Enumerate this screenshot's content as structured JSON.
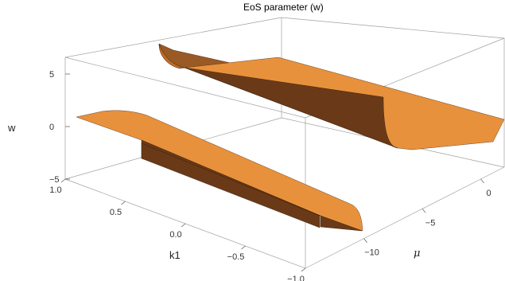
{
  "chart_data": {
    "type": "surface3d",
    "title": "EoS parameter (w)",
    "xlabel": "k1",
    "ylabel": "μ",
    "zlabel": "w",
    "xlim": [
      -1.0,
      1.0
    ],
    "ylim": [
      -15,
      2
    ],
    "zlim": [
      -5.5,
      7
    ],
    "x_ticks": [
      1.0,
      0.5,
      0.0,
      -0.5,
      -1.0
    ],
    "x_tick_labels": [
      "1.0",
      "0.5",
      "0.0",
      "−0.5",
      "−1.0"
    ],
    "y_ticks": [
      -10,
      -5,
      0
    ],
    "y_tick_labels": [
      "−10",
      "−5",
      "0"
    ],
    "z_ticks": [
      -5,
      0,
      5
    ],
    "z_tick_labels": [
      "−5",
      "0",
      "5"
    ],
    "surface_color": "#e8913c",
    "shadow_color": "#6a3a18",
    "box_color": "#a0a0a0",
    "series": [
      {
        "branch": "upper",
        "k1_range": [
          0.05,
          1.0
        ],
        "mu_range": [
          -15,
          2
        ],
        "w_plateau": 5,
        "w_drop_to": 0,
        "drop_edge_k1": 0.05
      },
      {
        "branch": "lower",
        "k1_range": [
          -1.0,
          -0.05
        ],
        "mu_range": [
          -15,
          2
        ],
        "w_plateau": 0,
        "w_drop_to": -5,
        "drop_edge_k1": -0.05
      }
    ]
  }
}
